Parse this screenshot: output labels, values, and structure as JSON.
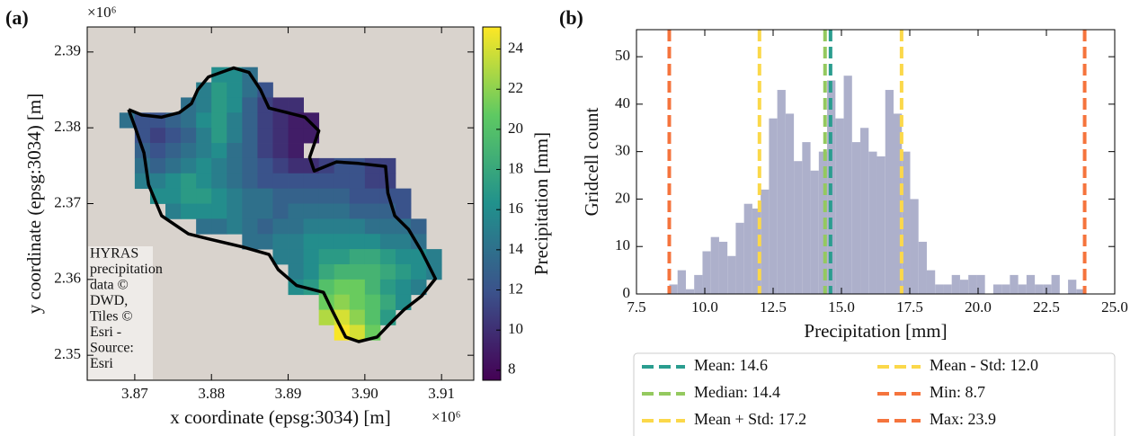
{
  "chart_data": [
    {
      "type": "raster_map",
      "panel": "(a)",
      "xlabel": "x coordinate (epsg:3034) [m]",
      "ylabel": "y coordinate (epsg:3034) [m]",
      "x_offset": "×10⁶",
      "y_offset": "×10⁶",
      "xlim": [
        3.8638,
        3.9142
      ],
      "xticks": [
        3.87,
        3.88,
        3.89,
        {
          "value": 3.9,
          "label": "3.90"
        },
        3.91
      ],
      "ylim": [
        2.3467,
        2.3933
      ],
      "yticks": [
        2.35,
        2.36,
        2.37,
        2.38,
        2.39
      ],
      "colormap": "viridis",
      "clim": [
        7.5,
        25.1
      ],
      "cticks": [
        8,
        10,
        12,
        14,
        16,
        18,
        20,
        22,
        24
      ],
      "colorbar_label": "Precipitation [mm]",
      "cell_size": 0.002,
      "rows": [
        {
          "y": 2.387,
          "x0": 3.881,
          "values": [
            16,
            16,
            14
          ]
        },
        {
          "y": 2.385,
          "x0": 3.879,
          "values": [
            15,
            17,
            16,
            14,
            12
          ]
        },
        {
          "y": 2.383,
          "x0": 3.877,
          "values": [
            14,
            15,
            17,
            16,
            13,
            11,
            10,
            10
          ]
        },
        {
          "y": 2.381,
          "x0": 3.869,
          "values": [
            14,
            12,
            12,
            13,
            14,
            16,
            17,
            15,
            13,
            11,
            10,
            9,
            9
          ]
        },
        {
          "y": 2.379,
          "x0": 3.871,
          "values": [
            12,
            11,
            12,
            13,
            15,
            17,
            15,
            13,
            11,
            10,
            9,
            9
          ]
        },
        {
          "y": 2.377,
          "x0": 3.871,
          "values": [
            13,
            12,
            13,
            14,
            15,
            16,
            14,
            13,
            11,
            10,
            9
          ]
        },
        {
          "y": 2.375,
          "x0": 3.871,
          "values": [
            14,
            13,
            14,
            15,
            16,
            15,
            14,
            13,
            12,
            11,
            10,
            10,
            11,
            12,
            12,
            11,
            11
          ]
        },
        {
          "y": 2.373,
          "x0": 3.871,
          "values": [
            15,
            15,
            16,
            17,
            16,
            15,
            14,
            13,
            12,
            12,
            12,
            12,
            12,
            12,
            12,
            11,
            11
          ]
        },
        {
          "y": 2.371,
          "x0": 3.873,
          "values": [
            16,
            16,
            17,
            17,
            16,
            15,
            14,
            14,
            13,
            13,
            13,
            13,
            13,
            12,
            12,
            12,
            12
          ]
        },
        {
          "y": 2.369,
          "x0": 3.875,
          "values": [
            15,
            16,
            16,
            16,
            15,
            14,
            14,
            13,
            14,
            14,
            14,
            14,
            13,
            13,
            13,
            12
          ]
        },
        {
          "y": 2.367,
          "x0": 3.879,
          "values": [
            14,
            14,
            15,
            14,
            13,
            14,
            14,
            15,
            15,
            15,
            15,
            14,
            14,
            14,
            13
          ]
        },
        {
          "y": 2.365,
          "x0": 3.885,
          "values": [
            14,
            14,
            15,
            15,
            16,
            16,
            16,
            16,
            16,
            15,
            15,
            14
          ]
        },
        {
          "y": 2.363,
          "x0": 3.889,
          "values": [
            15,
            15,
            16,
            17,
            17,
            18,
            18,
            17,
            16,
            16,
            15
          ]
        },
        {
          "y": 2.361,
          "x0": 3.891,
          "values": [
            15,
            16,
            18,
            19,
            19,
            19,
            18,
            17,
            16,
            15
          ]
        },
        {
          "y": 2.359,
          "x0": 3.891,
          "values": [
            16,
            17,
            20,
            21,
            21,
            19,
            17,
            16,
            15
          ]
        },
        {
          "y": 2.357,
          "x0": 3.895,
          "values": [
            21,
            22,
            21,
            20,
            18,
            16
          ]
        },
        {
          "y": 2.355,
          "x0": 3.895,
          "values": [
            23,
            24,
            22,
            20,
            17
          ]
        },
        {
          "y": 2.353,
          "x0": 3.897,
          "values": [
            25,
            24,
            21
          ]
        }
      ],
      "boundary": {
        "color": "#000000",
        "x": [
          3.8692,
          3.8709,
          3.8735,
          3.8758,
          3.8774,
          3.8782,
          3.8796,
          3.8829,
          3.8849,
          3.8864,
          3.8875,
          3.8899,
          3.8922,
          3.894,
          3.8928,
          3.8934,
          3.8963,
          3.8992,
          3.9027,
          3.903,
          3.9039,
          3.9057,
          3.9074,
          3.9092,
          3.9074,
          3.9051,
          3.9033,
          3.9016,
          3.8992,
          3.8975,
          3.8957,
          3.8946,
          3.8911,
          3.8887,
          3.8875,
          3.884,
          3.8794,
          3.877,
          3.8735,
          3.8718,
          3.8712,
          3.87,
          3.8692
        ],
        "y": [
          2.3824,
          2.3817,
          2.3814,
          2.382,
          2.3832,
          2.385,
          2.3867,
          2.3879,
          2.3873,
          2.385,
          2.3826,
          2.382,
          2.3814,
          2.3796,
          2.3761,
          2.3743,
          2.3755,
          2.3753,
          2.3749,
          2.3714,
          2.3684,
          2.3666,
          2.3637,
          2.3601,
          2.3578,
          2.356,
          2.3542,
          2.3524,
          2.3518,
          2.3524,
          2.356,
          2.3583,
          2.3592,
          2.3613,
          2.3633,
          2.3643,
          2.3654,
          2.366,
          2.3684,
          2.3725,
          2.3767,
          2.3802,
          2.3824
        ]
      },
      "attribution": [
        "HYRAS",
        "precipitation",
        "data ©",
        "DWD,",
        "Tiles ©",
        "Esri -",
        "Source:",
        "Esri"
      ]
    },
    {
      "type": "histogram",
      "panel": "(b)",
      "xlabel": "Precipitation [mm]",
      "ylabel": "Gridcell count",
      "color": "#adb0cb",
      "xlim": [
        7.5,
        25.0
      ],
      "xticks": [
        7.5,
        {
          "value": 10,
          "label": "10.0"
        },
        12.5,
        {
          "value": 15,
          "label": "15.0"
        },
        17.5,
        {
          "value": 20,
          "label": "20.0"
        },
        22.5,
        {
          "value": 25,
          "label": "25.0"
        }
      ],
      "ylim": [
        0,
        55.7
      ],
      "yticks": [
        0,
        10,
        20,
        30,
        40,
        50
      ],
      "bins": [
        8.7,
        9.004,
        9.308,
        9.612,
        9.916,
        10.22,
        10.524,
        10.828,
        11.132,
        11.436,
        11.74,
        12.044,
        12.348,
        12.652,
        12.956,
        13.26,
        13.564,
        13.868,
        14.172,
        14.476,
        14.78,
        15.084,
        15.388,
        15.692,
        15.996,
        16.3,
        16.604,
        16.908,
        17.212,
        17.516,
        17.82,
        18.124,
        18.428,
        18.732,
        19.036,
        19.34,
        19.644,
        19.948,
        20.252,
        20.556,
        20.86,
        21.164,
        21.468,
        21.772,
        22.076,
        22.38,
        22.684,
        22.988,
        23.292,
        23.596,
        23.9
      ],
      "counts": [
        2,
        5,
        1,
        4,
        9,
        12,
        11,
        8,
        15,
        19,
        18,
        22,
        37,
        43,
        38,
        28,
        32,
        26,
        30,
        45,
        37,
        46,
        32,
        35,
        30,
        29,
        43,
        38,
        30,
        20,
        11,
        5,
        2,
        2,
        4,
        3,
        4,
        4,
        0,
        2,
        2,
        4,
        2,
        4,
        2,
        2,
        4,
        0,
        3,
        1
      ],
      "vlines": [
        {
          "name": "Mean: 14.6",
          "value": 14.6,
          "color": "#2a9d8f"
        },
        {
          "name": "Median: 14.4",
          "value": 14.4,
          "color": "#94c95f"
        },
        {
          "name": "Mean + Std: 17.2",
          "value": 17.2,
          "color": "#fbd84a"
        },
        {
          "name": "Mean - Std: 12.0",
          "value": 12.0,
          "color": "#fbd84a"
        },
        {
          "name": "Min: 8.7",
          "value": 8.7,
          "color": "#f5743d"
        },
        {
          "name": "Max: 23.9",
          "value": 23.9,
          "color": "#f5743d"
        }
      ],
      "legend": "below",
      "legend_columns": 2
    }
  ]
}
